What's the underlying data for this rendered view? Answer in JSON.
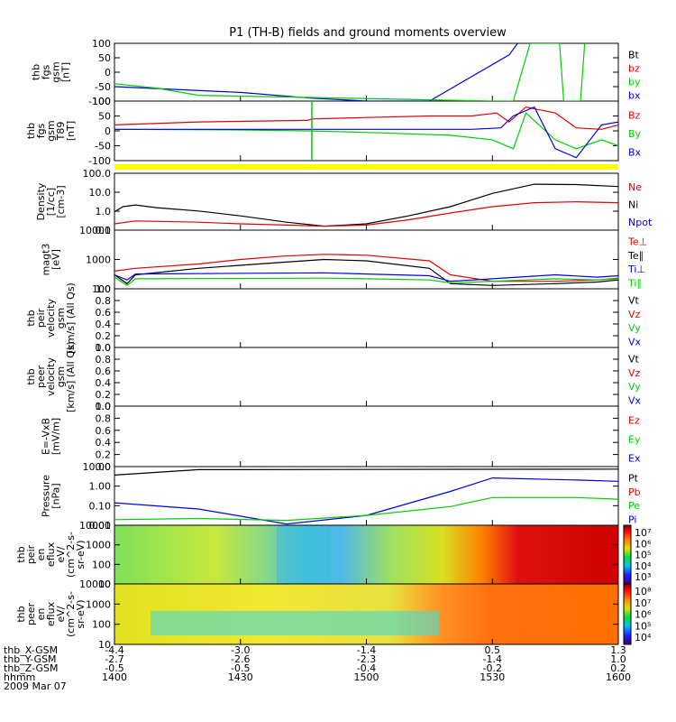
{
  "title": "P1 (TH-B) fields and ground moments overview",
  "colors": {
    "black": "#000000",
    "red": "#e00000",
    "green": "#00cc00",
    "blue": "#0000e0",
    "yellow": "#ffff00"
  },
  "panels": [
    {
      "ylabel": [
        "thb",
        "fgs",
        "gsm",
        "[nT]"
      ],
      "ticks": [
        "100",
        "50",
        "0",
        "-50",
        "-100"
      ],
      "legend": [
        {
          "text": "Bt",
          "color": "black"
        },
        {
          "text": "bz",
          "color": "red"
        },
        {
          "text": "by",
          "color": "green"
        },
        {
          "text": "bx",
          "color": "blue"
        }
      ]
    },
    {
      "ylabel": [
        "thb",
        "fgs",
        "gsm",
        "T89",
        "[nT]"
      ],
      "ticks": [
        "100",
        "50",
        "0",
        "-50",
        "-100"
      ],
      "legend": [
        {
          "text": "Bz",
          "color": "red"
        },
        {
          "text": "By",
          "color": "green"
        },
        {
          "text": "Bx",
          "color": "blue"
        }
      ]
    },
    {
      "ylabel": [
        "Density",
        "[1/cc]",
        "[cm-3]"
      ],
      "ticks": [
        "100.0",
        "10.0",
        "1.0",
        "0.1"
      ],
      "legend": [
        {
          "text": "Ne",
          "color": "red"
        },
        {
          "text": "Ni",
          "color": "black"
        },
        {
          "text": "Npot",
          "color": "blue"
        }
      ]
    },
    {
      "ylabel": [
        "magt3",
        "[eV]"
      ],
      "ticks": [
        "10000",
        "1000",
        "100"
      ],
      "legend": [
        {
          "text": "Te⊥",
          "color": "red"
        },
        {
          "text": "Te∥",
          "color": "black"
        },
        {
          "text": "Ti⊥",
          "color": "blue"
        },
        {
          "text": "Ti∥",
          "color": "green"
        }
      ]
    },
    {
      "ylabel": [
        "thb",
        "peir",
        "velocity",
        "gsm",
        "[km/s] (All Qs)"
      ],
      "ticks": [
        "1.0",
        "0.8",
        "0.6",
        "0.4",
        "0.2",
        "0.0"
      ],
      "legend": [
        {
          "text": "Vt",
          "color": "black"
        },
        {
          "text": "Vz",
          "color": "red"
        },
        {
          "text": "Vy",
          "color": "green"
        },
        {
          "text": "Vx",
          "color": "blue"
        }
      ]
    },
    {
      "ylabel": [
        "thb",
        "peer",
        "velocity",
        "gsm",
        "[km/s] (All Qs)"
      ],
      "ticks": [
        "1.0",
        "0.8",
        "0.6",
        "0.4",
        "0.2",
        "0.0"
      ],
      "legend": [
        {
          "text": "Vt",
          "color": "black"
        },
        {
          "text": "Vz",
          "color": "red"
        },
        {
          "text": "Vy",
          "color": "green"
        },
        {
          "text": "Vx",
          "color": "blue"
        }
      ]
    },
    {
      "ylabel": [
        "E=-VxB",
        "[mV/m]"
      ],
      "ticks": [
        "1.0",
        "0.8",
        "0.6",
        "0.4",
        "0.2",
        "0.0"
      ],
      "legend": [
        {
          "text": "Ez",
          "color": "red"
        },
        {
          "text": "Ey",
          "color": "green"
        },
        {
          "text": "Ex",
          "color": "blue"
        }
      ]
    },
    {
      "ylabel": [
        "Pressure",
        "[nPa]"
      ],
      "ticks": [
        "10.00",
        "1.00",
        "0.10",
        "0.01"
      ],
      "legend": [
        {
          "text": "Pt",
          "color": "black"
        },
        {
          "text": "Pb",
          "color": "red"
        },
        {
          "text": "Pe",
          "color": "green"
        },
        {
          "text": "Pi",
          "color": "blue"
        }
      ]
    },
    {
      "ylabel": [
        "thb",
        "peir",
        "en",
        "eflux",
        "eV/",
        "(cm^2-s-",
        "sr-eV)"
      ],
      "ticks": [
        "10000",
        "1000",
        "100",
        "10"
      ],
      "cbar_ticks": [
        "10⁷",
        "10⁶",
        "10⁵",
        "10⁴",
        "10³"
      ]
    },
    {
      "ylabel": [
        "thb",
        "peer",
        "en",
        "eflux",
        "eV/",
        "(cm^2-s-",
        "sr-eV)"
      ],
      "ticks": [
        "10000",
        "1000",
        "100",
        "10"
      ],
      "cbar_ticks": [
        "10⁸",
        "10⁷",
        "10⁶",
        "10⁵",
        "10⁴"
      ]
    }
  ],
  "xaxis": {
    "times": [
      "1400",
      "1430",
      "1500",
      "1530",
      "1600"
    ],
    "ephemeris": [
      {
        "label": "thb_X-GSM",
        "values": [
          "-4.4",
          "-3.0",
          "-1.4",
          "0.5",
          "1.3"
        ]
      },
      {
        "label": "thb_Y-GSM",
        "values": [
          "-2.7",
          "-2.6",
          "-2.3",
          "-1.4",
          "1.0"
        ]
      },
      {
        "label": "thb_Z-GSM",
        "values": [
          "-0.5",
          "-0.5",
          "-0.4",
          "-0.2",
          "0.2"
        ]
      },
      {
        "label": "hhmm",
        "values": []
      },
      {
        "label": "2009 Mar 07",
        "values": []
      }
    ]
  },
  "chart_data": {
    "type": "line",
    "title": "P1 (TH-B) fields and ground moments overview",
    "x_time_range": [
      "1400",
      "1600"
    ],
    "series": [
      {
        "panel": 0,
        "name": "bx",
        "x": [
          "1400",
          "1430",
          "1447",
          "1500",
          "1515",
          "1534",
          "1536"
        ],
        "y": [
          -50,
          -70,
          -90,
          -100,
          -100,
          60,
          100
        ]
      },
      {
        "panel": 0,
        "name": "by",
        "x": [
          "1400",
          "1410",
          "1420",
          "1530",
          "1535",
          "1539",
          "1546",
          "1547",
          "1551",
          "1552"
        ],
        "y": [
          -40,
          -55,
          -80,
          -100,
          -100,
          100,
          100,
          -100,
          -100,
          100
        ]
      },
      {
        "panel": 1,
        "name": "Bz",
        "x": [
          "1400",
          "1420",
          "1446",
          "1447",
          "1500",
          "1515",
          "1525",
          "1531",
          "1534",
          "1538",
          "1545",
          "1550",
          "1556",
          "1600"
        ],
        "y": [
          20,
          30,
          35,
          40,
          45,
          50,
          50,
          60,
          30,
          80,
          60,
          10,
          5,
          20
        ]
      },
      {
        "panel": 1,
        "name": "By",
        "x": [
          "1400",
          "1430",
          "1446",
          "1500",
          "1520",
          "1530",
          "1535",
          "1538",
          "1545",
          "1550",
          "1556",
          "1600"
        ],
        "y": [
          5,
          3,
          0,
          -5,
          -15,
          -30,
          -60,
          60,
          -30,
          -60,
          -30,
          -50
        ]
      },
      {
        "panel": 1,
        "name": "Bx",
        "x": [
          "1400",
          "1430",
          "1500",
          "1525",
          "1532",
          "1535",
          "1540",
          "1545",
          "1550",
          "1556",
          "1600"
        ],
        "y": [
          5,
          5,
          5,
          5,
          10,
          50,
          80,
          -60,
          -90,
          20,
          30
        ]
      },
      {
        "panel": 2,
        "name": "Ni",
        "x": [
          "1400",
          "1402",
          "1405",
          "1410",
          "1420",
          "1430",
          "1441",
          "1450",
          "1500",
          "1510",
          "1520",
          "1530",
          "1540",
          "1550",
          "1600"
        ],
        "y": [
          1.2,
          3,
          4,
          2.5,
          1.4,
          0.6,
          0.2,
          0.1,
          0.15,
          0.6,
          3,
          30,
          150,
          140,
          100
        ]
      },
      {
        "panel": 2,
        "name": "Ne",
        "x": [
          "1400",
          "1405",
          "1420",
          "1430",
          "1441",
          "1450",
          "1500",
          "1510",
          "1520",
          "1530",
          "1540",
          "1550",
          "1600"
        ],
        "y": [
          0.15,
          0.25,
          0.2,
          0.15,
          0.12,
          0.1,
          0.12,
          0.3,
          1,
          3,
          6,
          7,
          6
        ]
      },
      {
        "panel": 3,
        "name": "Te⊥",
        "x": [
          "1400",
          "1405",
          "1420",
          "1430",
          "1440",
          "1450",
          "1500",
          "1515",
          "1520",
          "1530",
          "1545",
          "1555",
          "1600"
        ],
        "y": [
          400,
          500,
          700,
          1000,
          1300,
          1500,
          1400,
          900,
          300,
          180,
          180,
          200,
          230
        ]
      },
      {
        "panel": 3,
        "name": "Te∥",
        "x": [
          "1400",
          "1403",
          "1405",
          "1420",
          "1440",
          "1450",
          "1500",
          "1515",
          "1520",
          "1530",
          "1545",
          "1555",
          "1600"
        ],
        "y": [
          300,
          150,
          300,
          500,
          800,
          1000,
          900,
          500,
          150,
          130,
          150,
          170,
          200
        ]
      },
      {
        "panel": 3,
        "name": "Ti⊥",
        "x": [
          "1400",
          "1403",
          "1405",
          "1450",
          "1500",
          "1515",
          "1520",
          "1530",
          "1545",
          "1555",
          "1600"
        ],
        "y": [
          300,
          200,
          320,
          350,
          320,
          280,
          180,
          220,
          300,
          250,
          280
        ]
      },
      {
        "panel": 3,
        "name": "Ti∥",
        "x": [
          "1400",
          "1403",
          "1405",
          "1450",
          "1500",
          "1515",
          "1520",
          "1530",
          "1545",
          "1555",
          "1600"
        ],
        "y": [
          250,
          130,
          220,
          230,
          220,
          200,
          160,
          180,
          220,
          200,
          220
        ]
      },
      {
        "panel": 7,
        "name": "Pt",
        "x": [
          "1400",
          "1420",
          "1600"
        ],
        "y": [
          6,
          13,
          14
        ]
      },
      {
        "panel": 7,
        "name": "Pi",
        "x": [
          "1400",
          "1420",
          "1441",
          "1500",
          "1520",
          "1530",
          "1550",
          "1600"
        ],
        "y": [
          0.12,
          0.05,
          0.006,
          0.02,
          0.6,
          4,
          3,
          2.5
        ]
      },
      {
        "panel": 7,
        "name": "Pe",
        "x": [
          "1400",
          "1420",
          "1441",
          "1500",
          "1520",
          "1530",
          "1550",
          "1600"
        ],
        "y": [
          0.011,
          0.013,
          0.01,
          0.02,
          0.07,
          0.25,
          0.25,
          0.2
        ]
      }
    ]
  }
}
